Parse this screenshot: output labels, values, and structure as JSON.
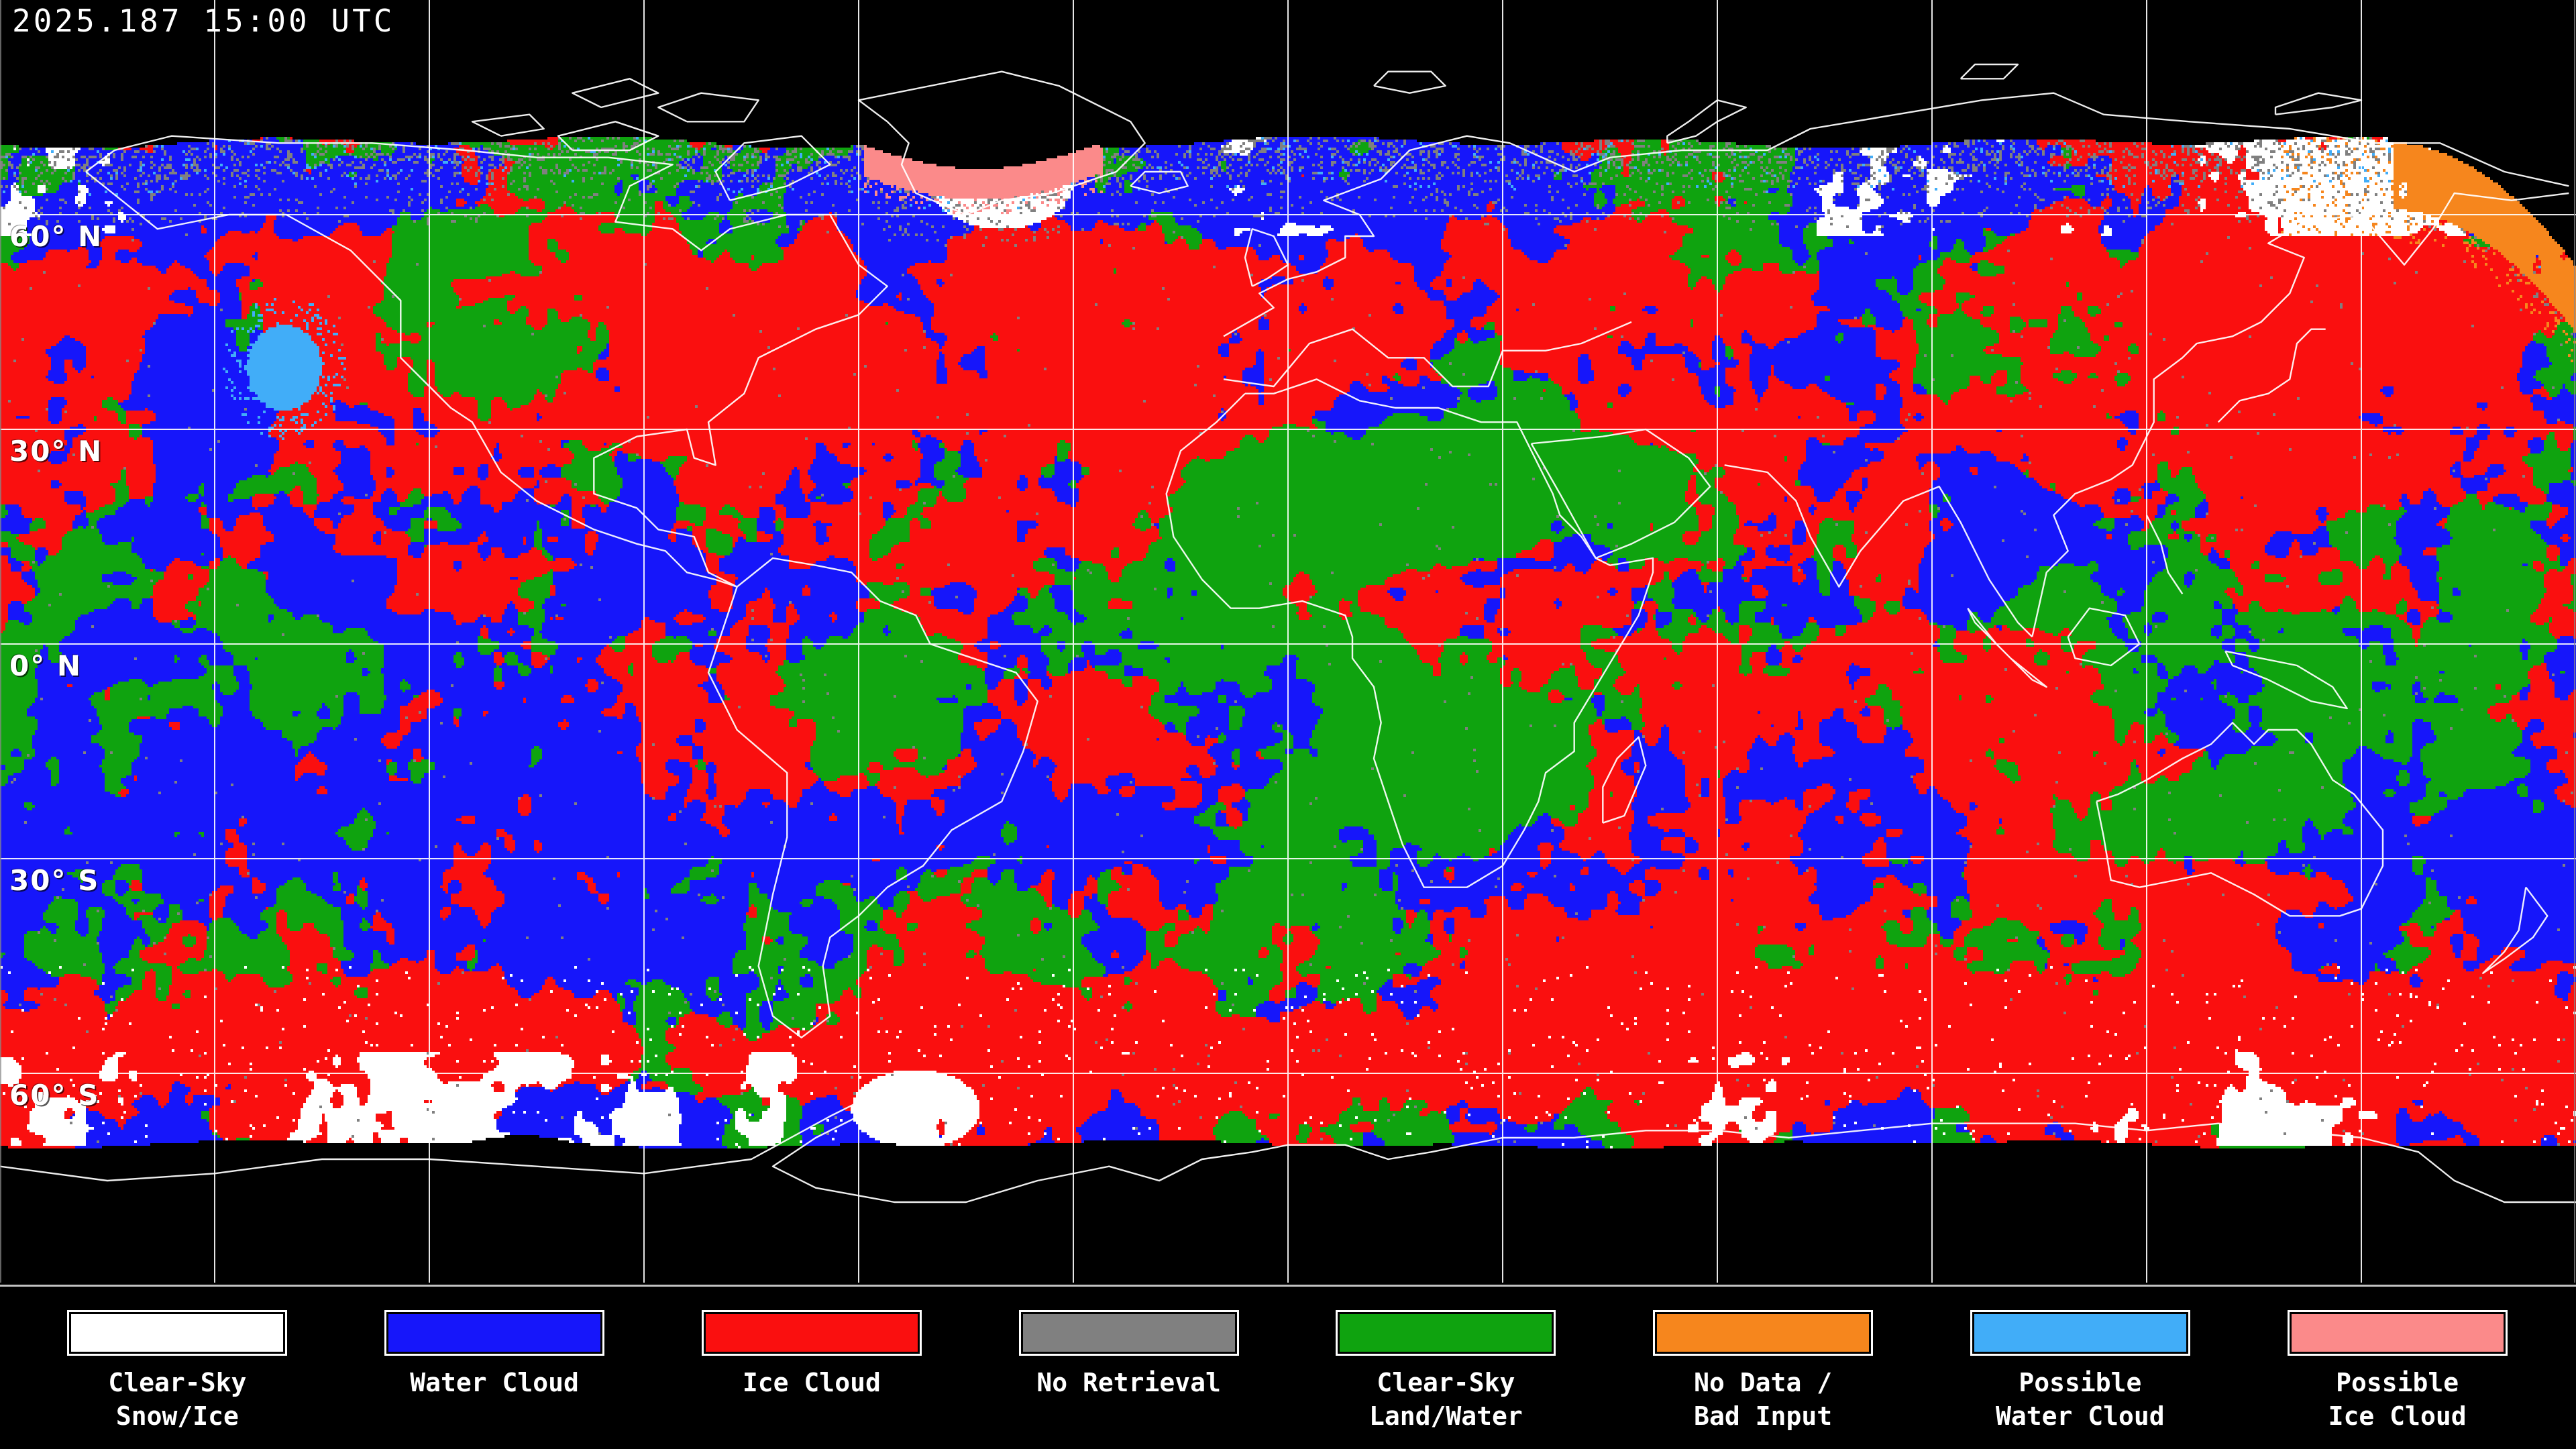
{
  "header": {
    "timestamp": "2025.187 15:00 UTC"
  },
  "map": {
    "projection": "equirectangular",
    "grid": {
      "lon_step_deg": 30,
      "lat_step_deg": 30
    },
    "latitude_labels": [
      {
        "text": "60° N",
        "lat": 60
      },
      {
        "text": "30° N",
        "lat": 30
      },
      {
        "text": "0° N",
        "lat": 0
      },
      {
        "text": "30° S",
        "lat": -30
      },
      {
        "text": "60° S",
        "lat": -60
      }
    ],
    "colors": {
      "background": "#000000",
      "coastline": "#ffffff",
      "gridline": "#ffffff",
      "divider": "#c2c2c2",
      "edge_border": "#8a8a8a"
    }
  },
  "legend": {
    "items": [
      {
        "name": "clear-sky-snow-ice",
        "lines": [
          "Clear-Sky",
          "Snow/Ice"
        ],
        "color": "#ffffff"
      },
      {
        "name": "water-cloud",
        "lines": [
          "Water Cloud"
        ],
        "color": "#1616fa"
      },
      {
        "name": "ice-cloud",
        "lines": [
          "Ice Cloud"
        ],
        "color": "#fa0f0f"
      },
      {
        "name": "no-retrieval",
        "lines": [
          "No Retrieval"
        ],
        "color": "#808080"
      },
      {
        "name": "clear-sky-land-water",
        "lines": [
          "Clear-Sky",
          "Land/Water"
        ],
        "color": "#0fa30f"
      },
      {
        "name": "no-data-bad-input",
        "lines": [
          "No Data /",
          "Bad Input"
        ],
        "color": "#f6861d"
      },
      {
        "name": "possible-water-cloud",
        "lines": [
          "Possible",
          "Water Cloud"
        ],
        "color": "#41adf8"
      },
      {
        "name": "possible-ice-cloud",
        "lines": [
          "Possible",
          "Ice Cloud"
        ],
        "color": "#fb8a8a"
      }
    ]
  }
}
